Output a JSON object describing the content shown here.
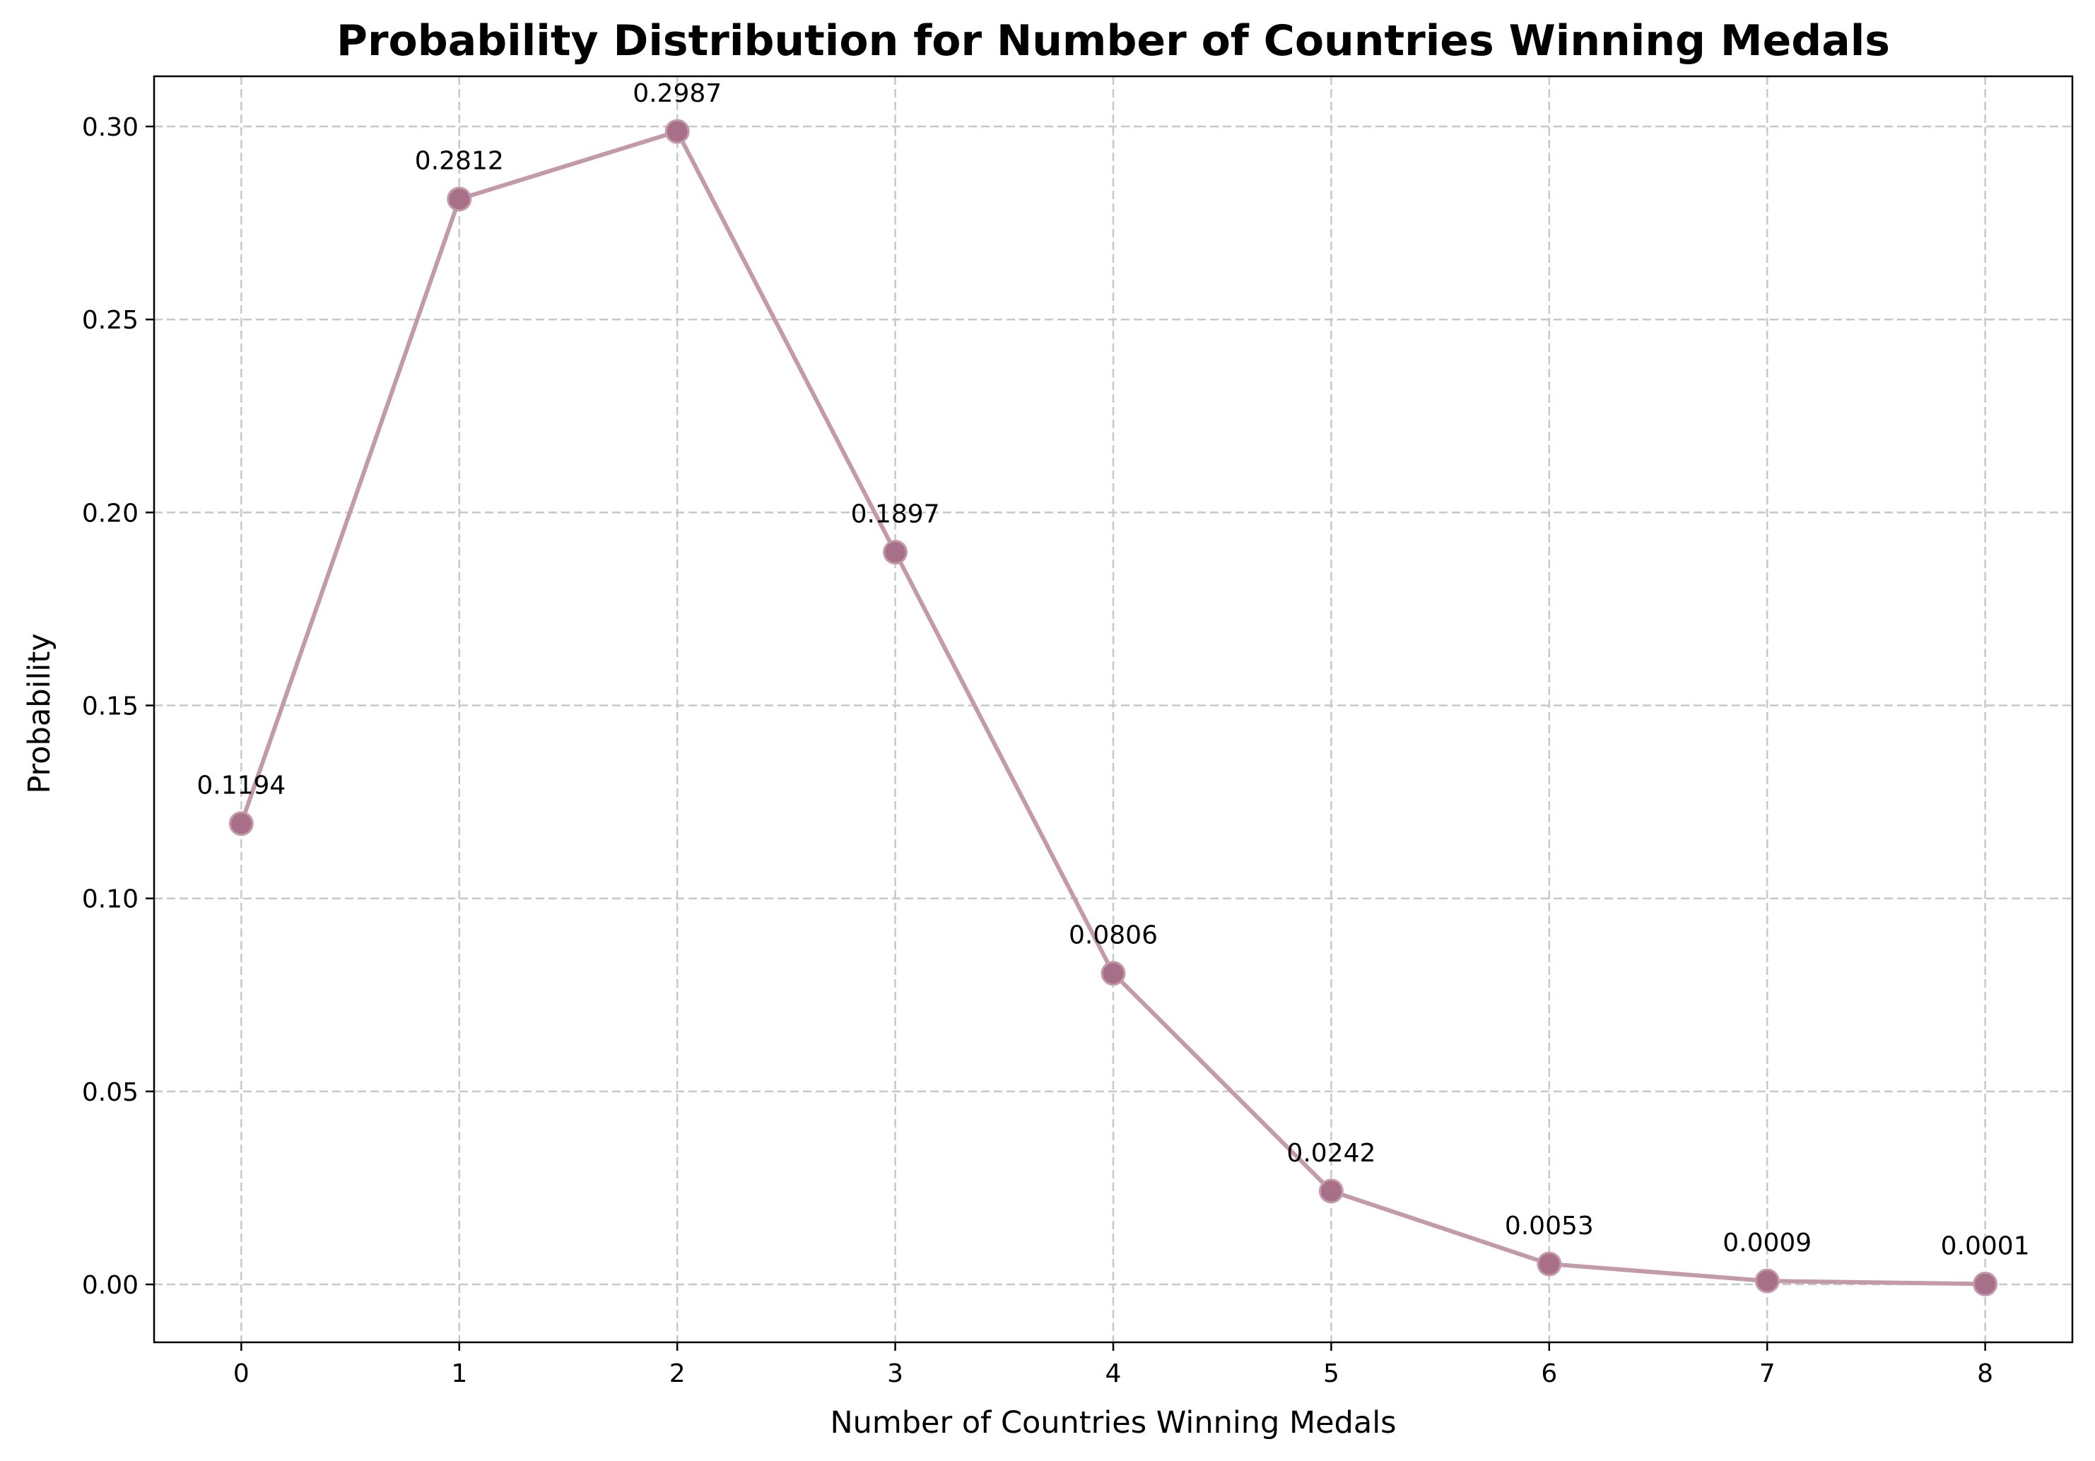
{
  "chart_data": {
    "type": "line",
    "title": "Probability Distribution for Number of Countries Winning Medals",
    "xlabel": "Number of Countries Winning Medals",
    "ylabel": "Probability",
    "x": [
      0,
      1,
      2,
      3,
      4,
      5,
      6,
      7,
      8
    ],
    "series": [
      {
        "values": [
          0.1194,
          0.2812,
          0.2987,
          0.1897,
          0.0806,
          0.0242,
          0.0053,
          0.0009,
          0.0001
        ],
        "data_labels": [
          "0.1194",
          "0.2812",
          "0.2987",
          "0.1897",
          "0.0806",
          "0.0242",
          "0.0053",
          "0.0009",
          "0.0001"
        ],
        "line_color": "#c39ba8",
        "marker_color": "#a86f88"
      }
    ],
    "xticks": [
      "0",
      "1",
      "2",
      "3",
      "4",
      "5",
      "6",
      "7",
      "8"
    ],
    "yticks": [
      "0.00",
      "0.05",
      "0.10",
      "0.15",
      "0.20",
      "0.25",
      "0.30"
    ],
    "xlim": [
      -0.4,
      8.4
    ],
    "ylim": [
      -0.015,
      0.313
    ],
    "grid": true
  }
}
